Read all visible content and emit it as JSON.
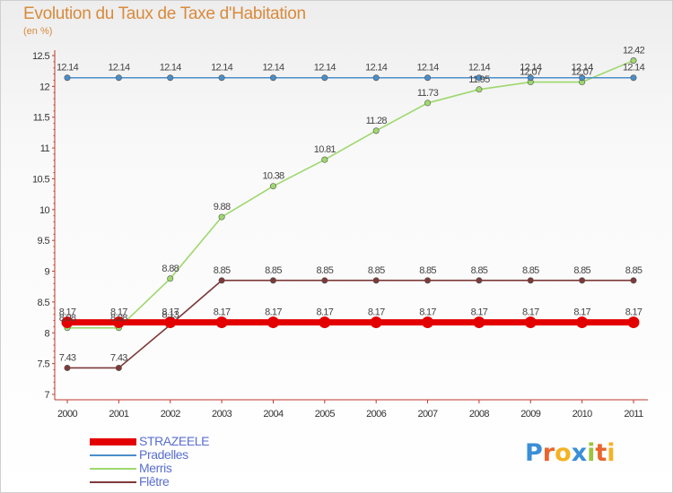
{
  "chart_data": {
    "type": "line",
    "title": "Evolution du Taux de Taxe d'Habitation",
    "subtitle": "(en %)",
    "x": [
      "2000",
      "2001",
      "2002",
      "2003",
      "2004",
      "2005",
      "2006",
      "2007",
      "2008",
      "2009",
      "2010",
      "2011"
    ],
    "yticks": [
      "7",
      "7.5",
      "8",
      "8.5",
      "9",
      "9.5",
      "10",
      "10.5",
      "11",
      "11.5",
      "12",
      "12.5"
    ],
    "ylim": [
      7,
      12.5
    ],
    "grid": false,
    "legend_position": "bottom-left",
    "series": [
      {
        "name": "STRAZEELE",
        "color": "#e30000",
        "values": [
          8.17,
          8.17,
          8.17,
          8.17,
          8.17,
          8.17,
          8.17,
          8.17,
          8.17,
          8.17,
          8.17,
          8.17
        ],
        "labels": [
          "8.17",
          "8.17",
          "8.17",
          "8.17",
          "8.17",
          "8.17",
          "8.17",
          "8.17",
          "8.17",
          "8.17",
          "8.17",
          "8.17"
        ]
      },
      {
        "name": "Pradelles",
        "color": "#4a8ec9",
        "values": [
          12.14,
          12.14,
          12.14,
          12.14,
          12.14,
          12.14,
          12.14,
          12.14,
          12.14,
          12.14,
          12.14,
          12.14
        ],
        "labels": [
          "12.14",
          "12.14",
          "12.14",
          "12.14",
          "12.14",
          "12.14",
          "12.14",
          "12.14",
          "12.14",
          "12.14",
          "12.14",
          "12.14"
        ]
      },
      {
        "name": "Merris",
        "color": "#9ed86e",
        "values": [
          8.08,
          8.08,
          8.88,
          9.88,
          10.38,
          10.81,
          11.28,
          11.73,
          11.95,
          12.07,
          12.07,
          12.42
        ],
        "labels": [
          "8.08",
          "8.08",
          "8.88",
          "9.88",
          "10.38",
          "10.81",
          "11.28",
          "11.73",
          "11.95",
          "12.07",
          "12.07",
          "12.42"
        ]
      },
      {
        "name": "Flêtre",
        "color": "#7d3a3a",
        "values": [
          7.43,
          7.43,
          8.13,
          8.85,
          8.85,
          8.85,
          8.85,
          8.85,
          8.85,
          8.85,
          8.85,
          8.85
        ],
        "labels": [
          "7.43",
          "7.43",
          "8.13",
          "8.85",
          "8.85",
          "8.85",
          "8.85",
          "8.85",
          "8.85",
          "8.85",
          "8.85",
          "8.85"
        ]
      }
    ]
  },
  "logo": {
    "text": "Proxiti",
    "letters": [
      "P",
      "r",
      "o",
      "x",
      "i",
      "t",
      "i"
    ]
  }
}
